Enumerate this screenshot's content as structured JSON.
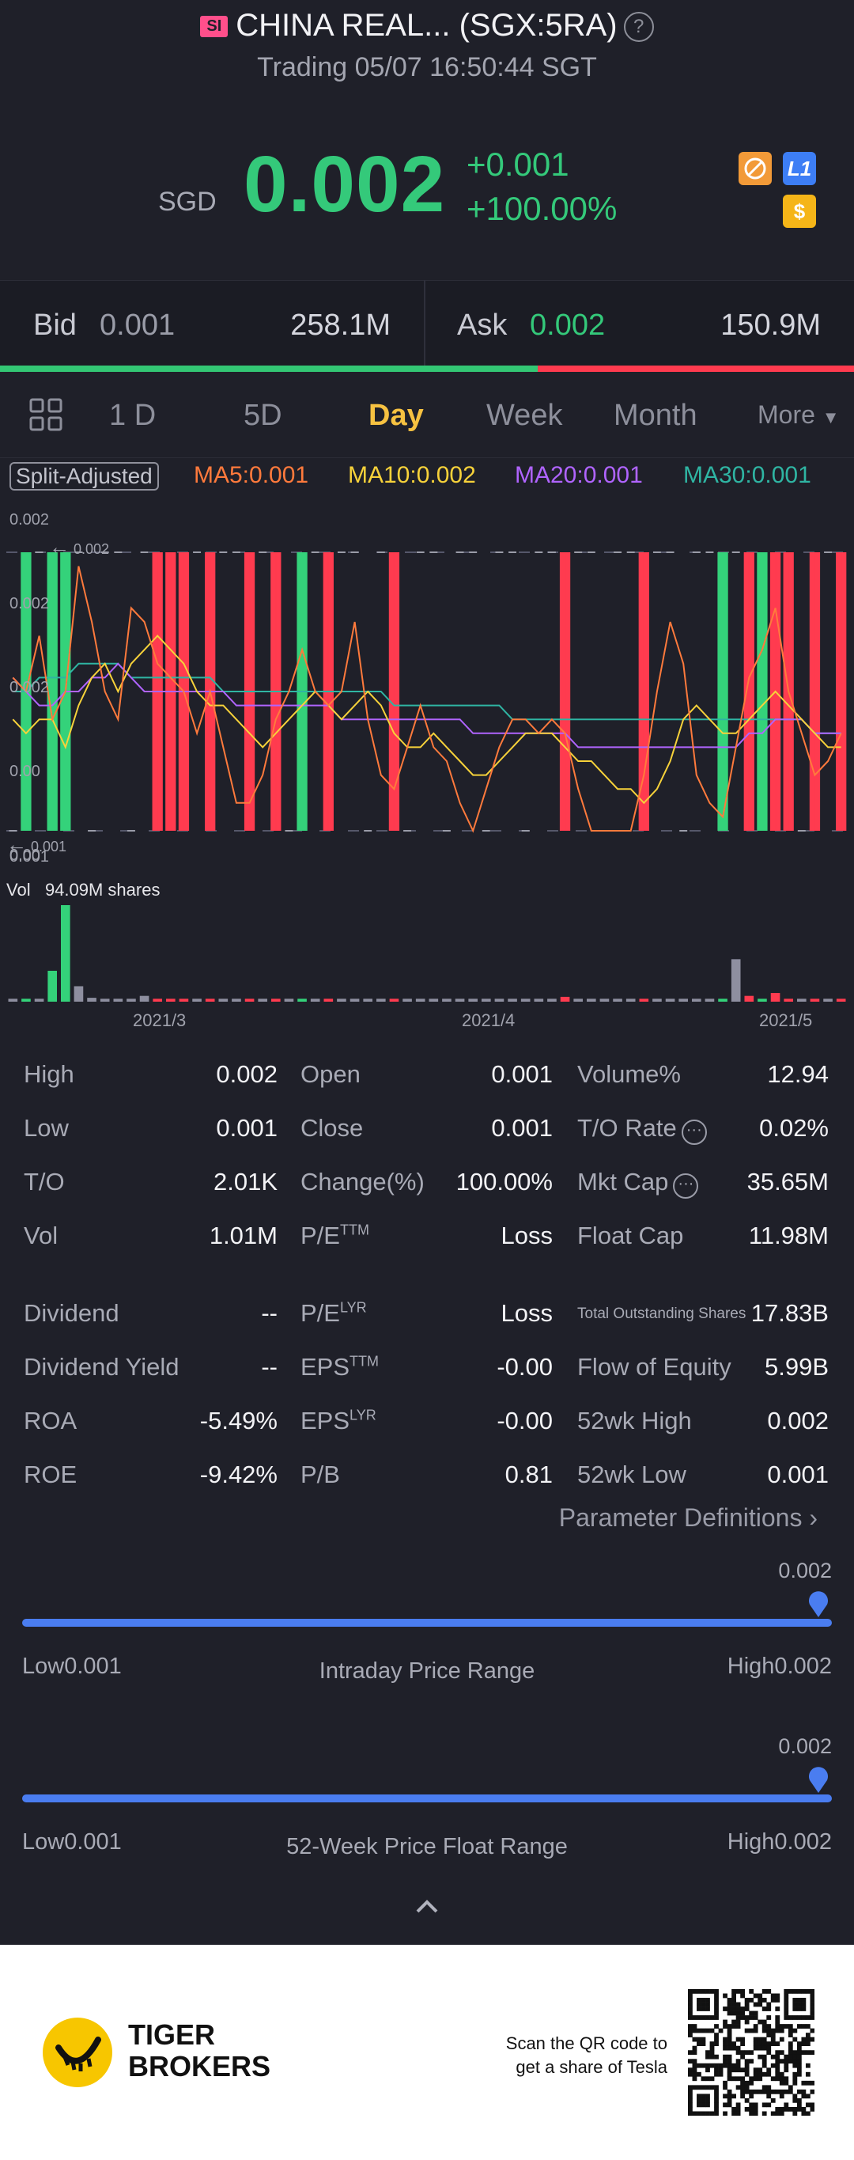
{
  "header": {
    "badge": "SI",
    "title": "CHINA REAL... (SGX:5RA)",
    "help_icon": "?",
    "status": "Trading 05/07 16:50:44 SGT"
  },
  "quote": {
    "currency": "SGD",
    "price": "0.002",
    "change": "+0.001",
    "change_pct": "+100.00%",
    "icons": [
      {
        "name": "no-short-icon",
        "color": "#f29a38"
      },
      {
        "name": "l1-level-icon",
        "label": "L1",
        "color": "#3d7ef5"
      },
      {
        "name": "dollar-icon",
        "label": "$",
        "color": "#f5b518"
      }
    ]
  },
  "bidask": {
    "bid_label": "Bid",
    "bid_price": "0.001",
    "bid_size": "258.1M",
    "ask_label": "Ask",
    "ask_price": "0.002",
    "ask_size": "150.9M",
    "bid_share": 0.63
  },
  "tabs": {
    "grid_icon": "grid-icon",
    "items": [
      "1 D",
      "5D",
      "Day",
      "Week",
      "Month"
    ],
    "active": "Day",
    "more": "More"
  },
  "indicators": {
    "split": "Split-Adjusted",
    "ma5": "MA5:0.001",
    "ma10": "MA10:0.002",
    "ma20": "MA20:0.001",
    "ma30": "MA30:0.001",
    "colors": {
      "ma5": "#ff7a3c",
      "ma10": "#f7d23a",
      "ma20": "#b064ff",
      "ma30": "#2fb5a3",
      "up": "#34d27a",
      "down": "#ff3b4f"
    }
  },
  "chart_data": {
    "type": "candlestick",
    "y_labels": [
      "0.002",
      "0.002",
      "0.002",
      "0.00",
      "0.00",
      "0.001"
    ],
    "max_marker": "0.002",
    "min_marker": "0.001",
    "x_labels": [
      "2021/3",
      "2021/4",
      "2021/5"
    ],
    "volume_label": "Vol",
    "volume_value": "94.09M shares",
    "ylim": [
      0.001,
      0.002
    ],
    "candles": [
      "flat",
      "up",
      "flat",
      "up",
      "up",
      "flat",
      "flat",
      "flat",
      "flat",
      "flat",
      "flat",
      "down",
      "down",
      "down",
      "flat",
      "down",
      "flat",
      "flat",
      "down",
      "flat",
      "down",
      "flat",
      "up",
      "flat",
      "down",
      "flat",
      "flat",
      "flat",
      "flat",
      "down",
      "flat",
      "flat",
      "flat",
      "flat",
      "flat",
      "flat",
      "flat",
      "flat",
      "flat",
      "flat",
      "flat",
      "flat",
      "down",
      "flat",
      "flat",
      "flat",
      "flat",
      "flat",
      "down",
      "flat",
      "flat",
      "flat",
      "flat",
      "flat",
      "up",
      "flat",
      "down",
      "up",
      "down",
      "down",
      "flat",
      "down",
      "flat",
      "down"
    ],
    "volumes": [
      0.3,
      0.3,
      0.3,
      3.2,
      10.0,
      1.6,
      0.4,
      0.3,
      0.3,
      0.3,
      0.6,
      0.3,
      0.3,
      0.3,
      0.3,
      0.3,
      0.3,
      0.3,
      0.3,
      0.3,
      0.3,
      0.3,
      0.3,
      0.3,
      0.3,
      0.3,
      0.3,
      0.3,
      0.3,
      0.3,
      0.3,
      0.3,
      0.3,
      0.3,
      0.3,
      0.3,
      0.3,
      0.3,
      0.3,
      0.3,
      0.3,
      0.3,
      0.5,
      0.3,
      0.3,
      0.3,
      0.3,
      0.3,
      0.3,
      0.3,
      0.3,
      0.3,
      0.3,
      0.3,
      0.3,
      4.4,
      0.6,
      0.3,
      0.9,
      0.3,
      0.3,
      0.3,
      0.3,
      0.3
    ],
    "ma5": [
      0.00155,
      0.0015,
      0.0017,
      0.0014,
      0.0015,
      0.00195,
      0.00175,
      0.0015,
      0.0014,
      0.0018,
      0.00175,
      0.0016,
      0.00155,
      0.0015,
      0.00135,
      0.0015,
      0.0013,
      0.0011,
      0.0011,
      0.0012,
      0.0014,
      0.0015,
      0.00165,
      0.0015,
      0.00145,
      0.0015,
      0.00175,
      0.0014,
      0.0012,
      0.00115,
      0.0013,
      0.00145,
      0.0013,
      0.00125,
      0.0011,
      0.001,
      0.00115,
      0.0013,
      0.0014,
      0.0014,
      0.00135,
      0.0014,
      0.00135,
      0.00115,
      0.001,
      0.001,
      0.001,
      0.001,
      0.0012,
      0.0015,
      0.00175,
      0.0016,
      0.0012,
      0.0011,
      0.00105,
      0.0013,
      0.00155,
      0.00165,
      0.0018,
      0.0015,
      0.00135,
      0.0012,
      0.00125,
      0.00135
    ],
    "ma10": [
      0.0014,
      0.00135,
      0.0014,
      0.0014,
      0.0013,
      0.00145,
      0.00155,
      0.0016,
      0.0015,
      0.0016,
      0.00165,
      0.0017,
      0.00165,
      0.0016,
      0.0015,
      0.00145,
      0.00145,
      0.0014,
      0.00135,
      0.0013,
      0.00135,
      0.0014,
      0.00145,
      0.0015,
      0.00145,
      0.0014,
      0.00145,
      0.0015,
      0.00145,
      0.00135,
      0.0013,
      0.0013,
      0.00135,
      0.0013,
      0.00125,
      0.0012,
      0.0012,
      0.00125,
      0.0013,
      0.00135,
      0.00135,
      0.00135,
      0.0013,
      0.00125,
      0.00125,
      0.0012,
      0.00115,
      0.00115,
      0.0011,
      0.00115,
      0.00125,
      0.0014,
      0.00145,
      0.0014,
      0.00135,
      0.00135,
      0.0014,
      0.00145,
      0.0015,
      0.00145,
      0.0014,
      0.00135,
      0.0013,
      0.0013
    ],
    "ma20": [
      0.00155,
      0.0015,
      0.00145,
      0.00145,
      0.0015,
      0.0015,
      0.00155,
      0.00155,
      0.0016,
      0.00155,
      0.0015,
      0.0015,
      0.0015,
      0.0015,
      0.0015,
      0.0015,
      0.0015,
      0.00145,
      0.00145,
      0.00145,
      0.00145,
      0.00145,
      0.00145,
      0.00145,
      0.00145,
      0.0014,
      0.0014,
      0.0014,
      0.0014,
      0.0014,
      0.0014,
      0.0014,
      0.0014,
      0.0014,
      0.0014,
      0.00135,
      0.00135,
      0.00135,
      0.00135,
      0.00135,
      0.00135,
      0.00135,
      0.00135,
      0.0013,
      0.0013,
      0.0013,
      0.0013,
      0.0013,
      0.0013,
      0.0013,
      0.0013,
      0.0013,
      0.0013,
      0.0013,
      0.0013,
      0.0013,
      0.00135,
      0.00135,
      0.0014,
      0.0014,
      0.0014,
      0.00135,
      0.00135,
      0.00135
    ],
    "ma30": [
      0.0015,
      0.0015,
      0.00155,
      0.00155,
      0.00155,
      0.0016,
      0.0016,
      0.0016,
      0.0016,
      0.00155,
      0.00155,
      0.00155,
      0.00155,
      0.00155,
      0.00155,
      0.00155,
      0.0015,
      0.0015,
      0.0015,
      0.0015,
      0.0015,
      0.0015,
      0.0015,
      0.0015,
      0.0015,
      0.0015,
      0.0015,
      0.0015,
      0.0015,
      0.00145,
      0.00145,
      0.00145,
      0.00145,
      0.00145,
      0.00145,
      0.00145,
      0.00145,
      0.00145,
      0.0014,
      0.0014,
      0.0014,
      0.0014,
      0.0014,
      0.0014,
      0.0014,
      0.0014,
      0.0014,
      0.0014,
      0.0014,
      0.0014,
      0.0014,
      0.0014,
      0.0014,
      0.0014,
      0.0014,
      0.0014,
      0.0014,
      0.0014,
      0.0014,
      0.0014,
      0.0014,
      0.00135,
      0.00135,
      0.00135
    ]
  },
  "stats": {
    "col1": [
      {
        "label": "High",
        "value": "0.002"
      },
      {
        "label": "Low",
        "value": "0.001"
      },
      {
        "label": "T/O",
        "value": "2.01K"
      },
      {
        "label": "Vol",
        "value": "1.01M"
      },
      {
        "label": "Dividend",
        "value": "--"
      },
      {
        "label": "Dividend Yield",
        "value": "--"
      },
      {
        "label": "ROA",
        "value": "-5.49%"
      },
      {
        "label": "ROE",
        "value": "-9.42%"
      }
    ],
    "col2": [
      {
        "label": "Open",
        "sup": "",
        "value": "0.001"
      },
      {
        "label": "Close",
        "sup": "",
        "value": "0.001"
      },
      {
        "label": "Change(%)",
        "sup": "",
        "value": "100.00%"
      },
      {
        "label": "P/E",
        "sup": "TTM",
        "value": "Loss"
      },
      {
        "label": "P/E",
        "sup": "LYR",
        "value": "Loss"
      },
      {
        "label": "EPS",
        "sup": "TTM",
        "value": "-0.00"
      },
      {
        "label": "EPS",
        "sup": "LYR",
        "value": "-0.00"
      },
      {
        "label": "P/B",
        "sup": "",
        "value": "0.81"
      }
    ],
    "col3": [
      {
        "label": "Volume%",
        "value": "12.94"
      },
      {
        "label": "T/O Rate",
        "value": "0.02%"
      },
      {
        "label": "Mkt Cap",
        "value": "35.65M"
      },
      {
        "label": "Float Cap",
        "value": "11.98M"
      },
      {
        "label": "Total Outstanding Shares",
        "value": "17.83B"
      },
      {
        "label": "Flow of Equity",
        "value": "5.99B"
      },
      {
        "label": "52wk High",
        "value": "0.002"
      },
      {
        "label": "52wk Low",
        "value": "0.001"
      }
    ],
    "param_link": "Parameter Definitions"
  },
  "intraday_range": {
    "marker": "0.002",
    "low": "Low0.001",
    "title": "Intraday Price Range",
    "high": "High0.002",
    "position": 1.0
  },
  "week52_range": {
    "marker": "0.002",
    "low": "Low0.001",
    "title": "52-Week Price Float Range",
    "high": "High0.002",
    "position": 1.0
  },
  "footer": {
    "brand_line1": "TIGER",
    "brand_line2": "BROKERS",
    "cta_line1": "Scan the QR code to",
    "cta_line2": "get a share of Tesla"
  }
}
